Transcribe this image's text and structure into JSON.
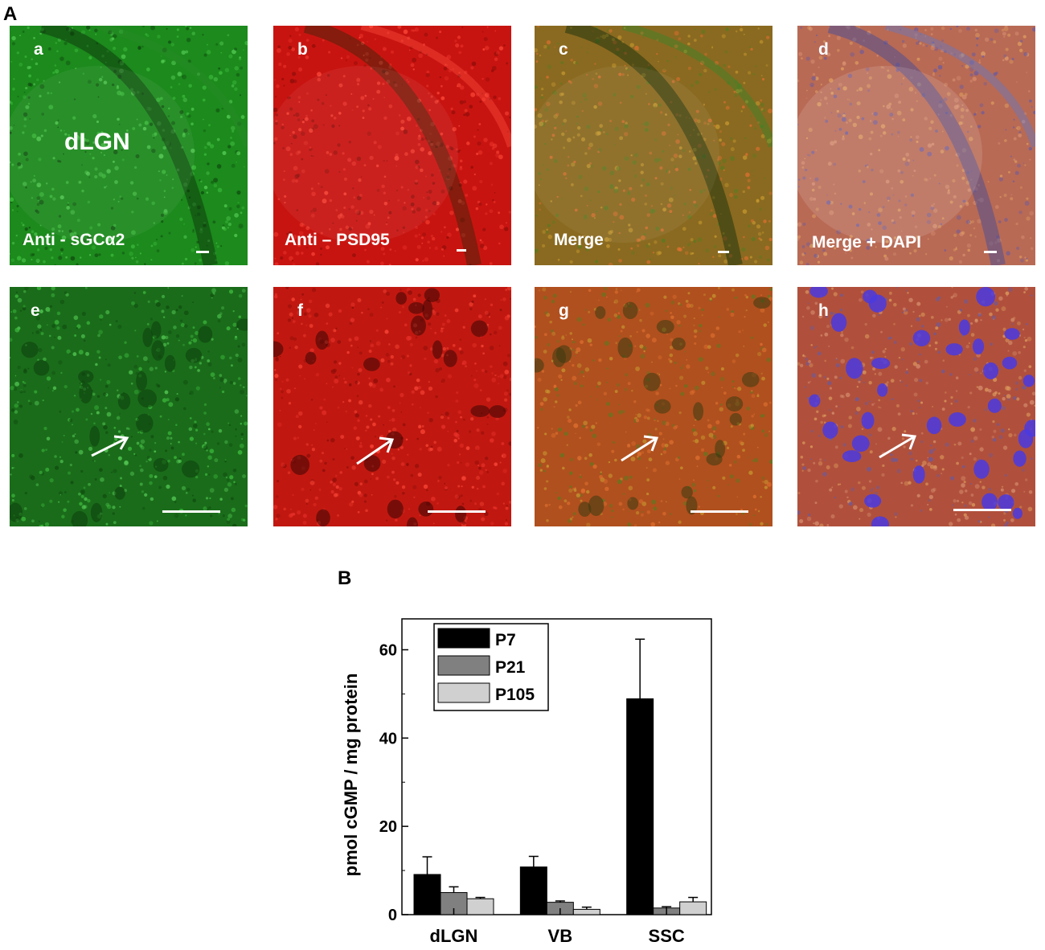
{
  "figure": {
    "panel_a_letter": "A",
    "panel_b_letter": "B"
  },
  "micrographs": [
    {
      "letter": "a",
      "label": "Anti - sGCα2",
      "region_label": "dLGN",
      "base": "#1c8a1c",
      "theme": "green"
    },
    {
      "letter": "b",
      "label": "Anti – PSD95",
      "base": "#c81410",
      "theme": "red"
    },
    {
      "letter": "c",
      "label": "Merge",
      "base": "#8a6a20",
      "theme": "merge"
    },
    {
      "letter": "d",
      "label": "Merge + DAPI",
      "base": "#b86a55",
      "theme": "dapi"
    },
    {
      "letter": "e",
      "label": "",
      "base": "#1a6c1a",
      "theme": "green"
    },
    {
      "letter": "f",
      "label": "",
      "base": "#c01810",
      "theme": "red"
    },
    {
      "letter": "g",
      "label": "",
      "base": "#b0501e",
      "theme": "merge"
    },
    {
      "letter": "h",
      "label": "",
      "base": "#b0503c",
      "theme": "dapi"
    }
  ],
  "chart_data": {
    "type": "bar",
    "categories": [
      "dLGN",
      "VB",
      "SSC"
    ],
    "series": [
      {
        "name": "P7",
        "values": [
          9.1,
          10.8,
          48.9
        ],
        "errors": [
          4.0,
          2.4,
          13.5
        ],
        "color": "#000000"
      },
      {
        "name": "P21",
        "values": [
          5.0,
          2.8,
          1.5
        ],
        "errors": [
          1.3,
          0.3,
          0.3
        ],
        "color": "#808080"
      },
      {
        "name": "P105",
        "values": [
          3.6,
          1.2,
          2.9
        ],
        "errors": [
          0.3,
          0.5,
          1.0
        ],
        "color": "#d0d0d0"
      }
    ],
    "ylabel": "pmol cGMP / mg protein",
    "ylim": [
      0,
      67
    ],
    "yticks": [
      0,
      20,
      40,
      60
    ],
    "legend_position": "top-left",
    "grid": false
  }
}
